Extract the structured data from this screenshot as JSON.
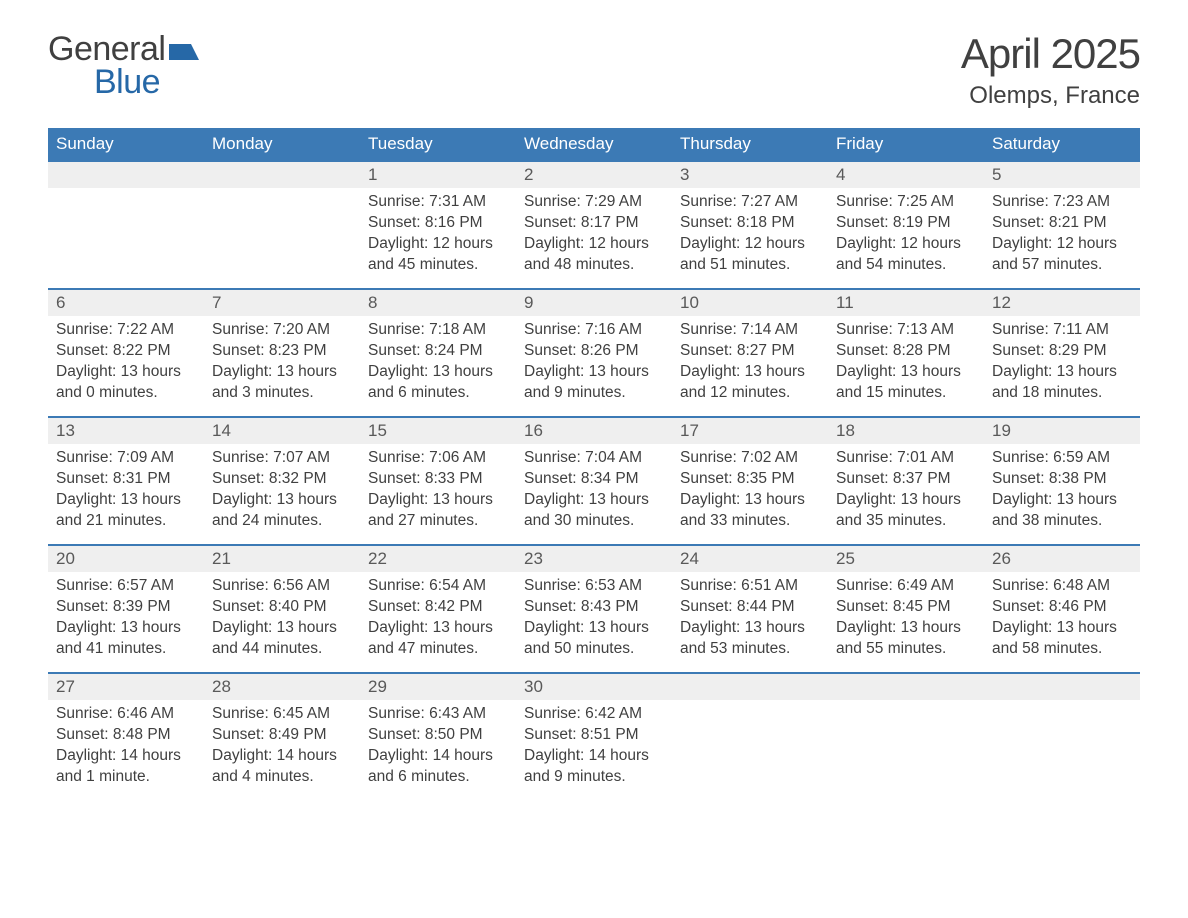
{
  "brand": {
    "line1": "General",
    "line2": "Blue",
    "accent": "#2668a7"
  },
  "title": "April 2025",
  "location": "Olemps, France",
  "colors": {
    "header_bg": "#3c7ab5",
    "header_text": "#ffffff",
    "daynum_bg": "#efefef",
    "daynum_border": "#3c7ab5",
    "text": "#404040",
    "background": "#ffffff"
  },
  "typography": {
    "body_fontsize": 15.5,
    "title_fontsize": 42,
    "location_fontsize": 24
  },
  "calendar": {
    "columns": [
      "Sunday",
      "Monday",
      "Tuesday",
      "Wednesday",
      "Thursday",
      "Friday",
      "Saturday"
    ],
    "weeks": [
      [
        null,
        null,
        {
          "n": "1",
          "sr": "7:31 AM",
          "ss": "8:16 PM",
          "dl": "12 hours and 45 minutes."
        },
        {
          "n": "2",
          "sr": "7:29 AM",
          "ss": "8:17 PM",
          "dl": "12 hours and 48 minutes."
        },
        {
          "n": "3",
          "sr": "7:27 AM",
          "ss": "8:18 PM",
          "dl": "12 hours and 51 minutes."
        },
        {
          "n": "4",
          "sr": "7:25 AM",
          "ss": "8:19 PM",
          "dl": "12 hours and 54 minutes."
        },
        {
          "n": "5",
          "sr": "7:23 AM",
          "ss": "8:21 PM",
          "dl": "12 hours and 57 minutes."
        }
      ],
      [
        {
          "n": "6",
          "sr": "7:22 AM",
          "ss": "8:22 PM",
          "dl": "13 hours and 0 minutes."
        },
        {
          "n": "7",
          "sr": "7:20 AM",
          "ss": "8:23 PM",
          "dl": "13 hours and 3 minutes."
        },
        {
          "n": "8",
          "sr": "7:18 AM",
          "ss": "8:24 PM",
          "dl": "13 hours and 6 minutes."
        },
        {
          "n": "9",
          "sr": "7:16 AM",
          "ss": "8:26 PM",
          "dl": "13 hours and 9 minutes."
        },
        {
          "n": "10",
          "sr": "7:14 AM",
          "ss": "8:27 PM",
          "dl": "13 hours and 12 minutes."
        },
        {
          "n": "11",
          "sr": "7:13 AM",
          "ss": "8:28 PM",
          "dl": "13 hours and 15 minutes."
        },
        {
          "n": "12",
          "sr": "7:11 AM",
          "ss": "8:29 PM",
          "dl": "13 hours and 18 minutes."
        }
      ],
      [
        {
          "n": "13",
          "sr": "7:09 AM",
          "ss": "8:31 PM",
          "dl": "13 hours and 21 minutes."
        },
        {
          "n": "14",
          "sr": "7:07 AM",
          "ss": "8:32 PM",
          "dl": "13 hours and 24 minutes."
        },
        {
          "n": "15",
          "sr": "7:06 AM",
          "ss": "8:33 PM",
          "dl": "13 hours and 27 minutes."
        },
        {
          "n": "16",
          "sr": "7:04 AM",
          "ss": "8:34 PM",
          "dl": "13 hours and 30 minutes."
        },
        {
          "n": "17",
          "sr": "7:02 AM",
          "ss": "8:35 PM",
          "dl": "13 hours and 33 minutes."
        },
        {
          "n": "18",
          "sr": "7:01 AM",
          "ss": "8:37 PM",
          "dl": "13 hours and 35 minutes."
        },
        {
          "n": "19",
          "sr": "6:59 AM",
          "ss": "8:38 PM",
          "dl": "13 hours and 38 minutes."
        }
      ],
      [
        {
          "n": "20",
          "sr": "6:57 AM",
          "ss": "8:39 PM",
          "dl": "13 hours and 41 minutes."
        },
        {
          "n": "21",
          "sr": "6:56 AM",
          "ss": "8:40 PM",
          "dl": "13 hours and 44 minutes."
        },
        {
          "n": "22",
          "sr": "6:54 AM",
          "ss": "8:42 PM",
          "dl": "13 hours and 47 minutes."
        },
        {
          "n": "23",
          "sr": "6:53 AM",
          "ss": "8:43 PM",
          "dl": "13 hours and 50 minutes."
        },
        {
          "n": "24",
          "sr": "6:51 AM",
          "ss": "8:44 PM",
          "dl": "13 hours and 53 minutes."
        },
        {
          "n": "25",
          "sr": "6:49 AM",
          "ss": "8:45 PM",
          "dl": "13 hours and 55 minutes."
        },
        {
          "n": "26",
          "sr": "6:48 AM",
          "ss": "8:46 PM",
          "dl": "13 hours and 58 minutes."
        }
      ],
      [
        {
          "n": "27",
          "sr": "6:46 AM",
          "ss": "8:48 PM",
          "dl": "14 hours and 1 minute."
        },
        {
          "n": "28",
          "sr": "6:45 AM",
          "ss": "8:49 PM",
          "dl": "14 hours and 4 minutes."
        },
        {
          "n": "29",
          "sr": "6:43 AM",
          "ss": "8:50 PM",
          "dl": "14 hours and 6 minutes."
        },
        {
          "n": "30",
          "sr": "6:42 AM",
          "ss": "8:51 PM",
          "dl": "14 hours and 9 minutes."
        },
        null,
        null,
        null
      ]
    ]
  },
  "labels": {
    "sunrise": "Sunrise: ",
    "sunset": "Sunset: ",
    "daylight": "Daylight: "
  }
}
